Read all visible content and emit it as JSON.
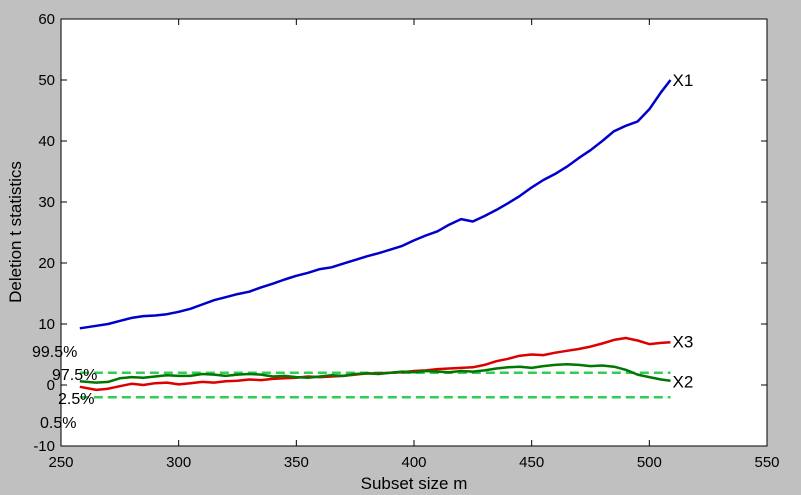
{
  "chart_data": {
    "type": "line",
    "title": "",
    "xlabel": "Subset size m",
    "ylabel": "Deletion t statistics",
    "xlim": [
      250,
      550
    ],
    "ylim": [
      -10,
      60
    ],
    "xticks": [
      250,
      300,
      350,
      400,
      450,
      500,
      550
    ],
    "yticks": [
      -10,
      0,
      10,
      20,
      30,
      40,
      50,
      60
    ],
    "grid": false,
    "series": [
      {
        "name": "X1",
        "color": "#0000cc",
        "x": [
          258,
          265,
          270,
          275,
          280,
          285,
          290,
          295,
          300,
          305,
          310,
          315,
          320,
          325,
          330,
          335,
          340,
          345,
          350,
          355,
          360,
          365,
          370,
          375,
          380,
          385,
          390,
          395,
          400,
          405,
          410,
          415,
          420,
          425,
          430,
          435,
          440,
          445,
          450,
          455,
          460,
          465,
          470,
          475,
          480,
          485,
          490,
          495,
          500,
          505,
          509
        ],
        "y": [
          9.3,
          9.7,
          10.0,
          10.5,
          11.0,
          11.3,
          11.4,
          11.6,
          12.0,
          12.5,
          13.2,
          13.9,
          14.4,
          14.9,
          15.3,
          16.0,
          16.6,
          17.3,
          17.9,
          18.4,
          19.0,
          19.3,
          19.9,
          20.5,
          21.1,
          21.6,
          22.2,
          22.8,
          23.7,
          24.5,
          25.2,
          26.3,
          27.2,
          26.8,
          27.7,
          28.7,
          29.8,
          31.0,
          32.4,
          33.6,
          34.6,
          35.8,
          37.2,
          38.5,
          40.0,
          41.6,
          42.5,
          43.2,
          45.2,
          48.0,
          50.0
        ]
      },
      {
        "name": "X3",
        "color": "#dd0000",
        "x": [
          258,
          265,
          270,
          275,
          280,
          285,
          290,
          295,
          300,
          305,
          310,
          315,
          320,
          325,
          330,
          335,
          340,
          345,
          350,
          355,
          360,
          365,
          370,
          375,
          380,
          385,
          390,
          395,
          400,
          405,
          410,
          415,
          420,
          425,
          430,
          435,
          440,
          445,
          450,
          455,
          460,
          465,
          470,
          475,
          480,
          485,
          490,
          495,
          500,
          505,
          509
        ],
        "y": [
          -0.3,
          -0.8,
          -0.6,
          -0.2,
          0.2,
          0.0,
          0.3,
          0.4,
          0.1,
          0.3,
          0.5,
          0.4,
          0.6,
          0.7,
          0.9,
          0.8,
          1.0,
          1.1,
          1.2,
          1.4,
          1.3,
          1.4,
          1.5,
          1.7,
          1.9,
          1.9,
          2.0,
          2.1,
          2.3,
          2.4,
          2.6,
          2.7,
          2.8,
          2.9,
          3.3,
          3.9,
          4.3,
          4.8,
          5.0,
          4.9,
          5.3,
          5.6,
          5.9,
          6.3,
          6.8,
          7.4,
          7.7,
          7.3,
          6.7,
          6.9,
          7.0
        ]
      },
      {
        "name": "X2",
        "color": "#007700",
        "x": [
          258,
          265,
          270,
          275,
          280,
          285,
          290,
          295,
          300,
          305,
          310,
          315,
          320,
          325,
          330,
          335,
          340,
          345,
          350,
          355,
          360,
          365,
          370,
          375,
          380,
          385,
          390,
          395,
          400,
          405,
          410,
          415,
          420,
          425,
          430,
          435,
          440,
          445,
          450,
          455,
          460,
          465,
          470,
          475,
          480,
          485,
          490,
          495,
          500,
          505,
          509
        ],
        "y": [
          0.6,
          0.4,
          0.5,
          1.1,
          1.3,
          1.2,
          1.4,
          1.6,
          1.5,
          1.5,
          1.8,
          1.7,
          1.5,
          1.7,
          1.8,
          1.7,
          1.4,
          1.5,
          1.3,
          1.2,
          1.4,
          1.6,
          1.5,
          1.8,
          1.9,
          1.8,
          2.0,
          2.2,
          2.1,
          2.3,
          2.2,
          2.1,
          2.3,
          2.2,
          2.4,
          2.7,
          2.9,
          3.0,
          2.8,
          3.1,
          3.3,
          3.4,
          3.3,
          3.1,
          3.2,
          3.0,
          2.5,
          1.7,
          1.3,
          0.9,
          0.7
        ]
      }
    ],
    "bands": {
      "color": "#33cc55",
      "x_range": [
        258,
        509
      ],
      "lines": [
        {
          "label": "99.5%",
          "value": 2.0
        },
        {
          "label": "97.5%",
          "value": 2.0
        },
        {
          "label": "2.5%",
          "value": -2.0
        },
        {
          "label": "0.5%",
          "value": -2.0
        }
      ]
    }
  }
}
